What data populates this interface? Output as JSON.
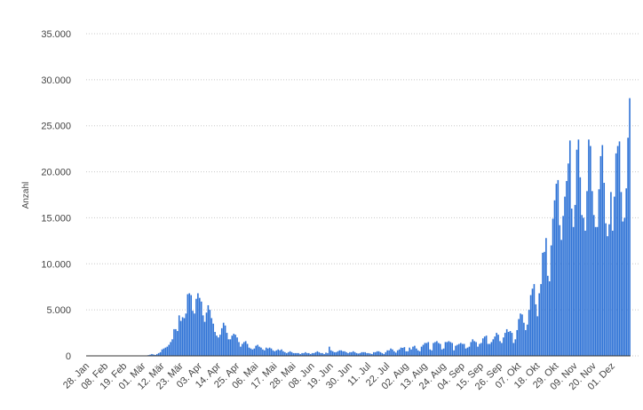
{
  "chart_data": {
    "type": "bar",
    "y_label": "Anzahl",
    "color": "#2f73d6",
    "grid": true,
    "ylim": [
      0,
      35000
    ],
    "yticks": [
      0,
      {
        "value": 5000,
        "label": "5.000"
      },
      {
        "value": 10000,
        "label": "10.000"
      },
      {
        "value": 15000,
        "label": "15.000"
      },
      {
        "value": 20000,
        "label": "20.000"
      },
      {
        "value": 25000,
        "label": "25.000"
      },
      {
        "value": 30000,
        "label": "30.000"
      },
      {
        "value": 35000,
        "label": "35.000"
      }
    ],
    "categories": [
      "28. Jan",
      null,
      null,
      null,
      null,
      null,
      null,
      null,
      null,
      null,
      null,
      "08. Feb",
      null,
      null,
      null,
      null,
      null,
      null,
      null,
      null,
      null,
      null,
      "19. Feb",
      null,
      null,
      null,
      null,
      null,
      null,
      null,
      null,
      null,
      null,
      "01. Mär",
      null,
      null,
      null,
      null,
      null,
      null,
      null,
      null,
      null,
      null,
      "12. Mär",
      null,
      null,
      null,
      null,
      null,
      null,
      null,
      null,
      null,
      null,
      "23. Mär",
      null,
      null,
      null,
      null,
      null,
      null,
      null,
      null,
      null,
      null,
      "03. Apr",
      null,
      null,
      null,
      null,
      null,
      null,
      null,
      null,
      null,
      null,
      "14. Apr",
      null,
      null,
      null,
      null,
      null,
      null,
      null,
      null,
      null,
      null,
      "25. Apr",
      null,
      null,
      null,
      null,
      null,
      null,
      null,
      null,
      null,
      null,
      "06. Mai",
      null,
      null,
      null,
      null,
      null,
      null,
      null,
      null,
      null,
      null,
      "17. Mai",
      null,
      null,
      null,
      null,
      null,
      null,
      null,
      null,
      null,
      null,
      "28. Mai",
      null,
      null,
      null,
      null,
      null,
      null,
      null,
      null,
      null,
      null,
      "08. Jun",
      null,
      null,
      null,
      null,
      null,
      null,
      null,
      null,
      null,
      null,
      "19. Jun",
      null,
      null,
      null,
      null,
      null,
      null,
      null,
      null,
      null,
      null,
      "30. Jun",
      null,
      null,
      null,
      null,
      null,
      null,
      null,
      null,
      null,
      null,
      "11. Jul",
      null,
      null,
      null,
      null,
      null,
      null,
      null,
      null,
      null,
      null,
      "22. Jul",
      null,
      null,
      null,
      null,
      null,
      null,
      null,
      null,
      null,
      null,
      "02. Aug",
      null,
      null,
      null,
      null,
      null,
      null,
      null,
      null,
      null,
      null,
      "13. Aug",
      null,
      null,
      null,
      null,
      null,
      null,
      null,
      null,
      null,
      null,
      "24. Aug",
      null,
      null,
      null,
      null,
      null,
      null,
      null,
      null,
      null,
      null,
      "04. Sep",
      null,
      null,
      null,
      null,
      null,
      null,
      null,
      null,
      null,
      null,
      "15. Sep",
      null,
      null,
      null,
      null,
      null,
      null,
      null,
      null,
      null,
      null,
      "26. Sep",
      null,
      null,
      null,
      null,
      null,
      null,
      null,
      null,
      null,
      null,
      "07. Okt",
      null,
      null,
      null,
      null,
      null,
      null,
      null,
      null,
      null,
      null,
      "18. Okt",
      null,
      null,
      null,
      null,
      null,
      null,
      null,
      null,
      null,
      null,
      "29. Okt",
      null,
      null,
      null,
      null,
      null,
      null,
      null,
      null,
      null,
      null,
      "09. Nov",
      null,
      null,
      null,
      null,
      null,
      null,
      null,
      null,
      null,
      null,
      "20. Nov",
      null,
      null,
      null,
      null,
      null,
      null,
      null,
      null,
      null,
      null,
      "01. Dez",
      null,
      null,
      null,
      null,
      null,
      null,
      null,
      null,
      null,
      null
    ],
    "values": [
      1,
      0,
      1,
      1,
      0,
      1,
      0,
      2,
      0,
      1,
      0,
      0,
      0,
      0,
      1,
      0,
      0,
      0,
      0,
      0,
      0,
      0,
      0,
      0,
      0,
      0,
      0,
      0,
      2,
      10,
      20,
      15,
      10,
      20,
      40,
      50,
      80,
      130,
      200,
      150,
      100,
      200,
      300,
      400,
      700,
      800,
      900,
      1000,
      1200,
      1500,
      1800,
      2900,
      2900,
      2700,
      4400,
      3800,
      4200,
      4100,
      4600,
      6700,
      6800,
      6600,
      4900,
      4600,
      6200,
      6800,
      6300,
      5900,
      4400,
      3700,
      4700,
      5500,
      5000,
      4100,
      3500,
      2600,
      2200,
      2000,
      2300,
      3000,
      3600,
      3300,
      2500,
      1800,
      1800,
      2200,
      2400,
      2300,
      2000,
      1500,
      1000,
      1300,
      1500,
      1600,
      1300,
      900,
      800,
      700,
      800,
      1100,
      1200,
      1000,
      900,
      700,
      600,
      900,
      800,
      900,
      800,
      600,
      500,
      600,
      700,
      600,
      700,
      500,
      400,
      300,
      400,
      500,
      400,
      300,
      300,
      300,
      300,
      200,
      300,
      300,
      400,
      300,
      300,
      200,
      300,
      300,
      400,
      500,
      400,
      300,
      300,
      200,
      350,
      300,
      1000,
      600,
      500,
      400,
      400,
      500,
      600,
      600,
      500,
      500,
      400,
      300,
      400,
      400,
      500,
      400,
      300,
      250,
      300,
      400,
      400,
      400,
      300,
      300,
      250,
      200,
      400,
      400,
      500,
      500,
      400,
      300,
      200,
      400,
      600,
      600,
      800,
      700,
      500,
      350,
      600,
      700,
      900,
      870,
      950,
      500,
      500,
      900,
      700,
      1000,
      1100,
      800,
      600,
      500,
      1000,
      1200,
      1400,
      1400,
      1500,
      700,
      600,
      1400,
      1500,
      1600,
      1400,
      1300,
      700,
      800,
      1500,
      1500,
      1600,
      1500,
      1400,
      600,
      1100,
      1200,
      1300,
      1400,
      1300,
      1300,
      800,
      900,
      1000,
      1500,
      1800,
      1600,
      1500,
      1000,
      1300,
      1400,
      1900,
      2100,
      2200,
      1300,
      1300,
      1500,
      1800,
      2100,
      2500,
      2300,
      1600,
      1400,
      2000,
      2500,
      2900,
      2600,
      2700,
      2500,
      1400,
      1800,
      2800,
      4000,
      4600,
      4500,
      3600,
      2800,
      3400,
      5000,
      6600,
      7300,
      7800,
      5600,
      4300,
      6800,
      7800,
      11200,
      11300,
      12800,
      8700,
      8100,
      12000,
      14900,
      16900,
      18700,
      19100,
      14200,
      12600,
      15200,
      17300,
      19000,
      20900,
      23400,
      16000,
      14000,
      16400,
      22400,
      23500,
      19400,
      15300,
      15000,
      13600,
      17900,
      23500,
      22800,
      17900,
      15300,
      14000,
      14000,
      18100,
      21700,
      22900,
      18800,
      14400,
      13000,
      14300,
      17800,
      13600,
      17300,
      22000,
      22800,
      23300,
      17800,
      14600,
      15000,
      18200,
      23700,
      28000
    ]
  }
}
